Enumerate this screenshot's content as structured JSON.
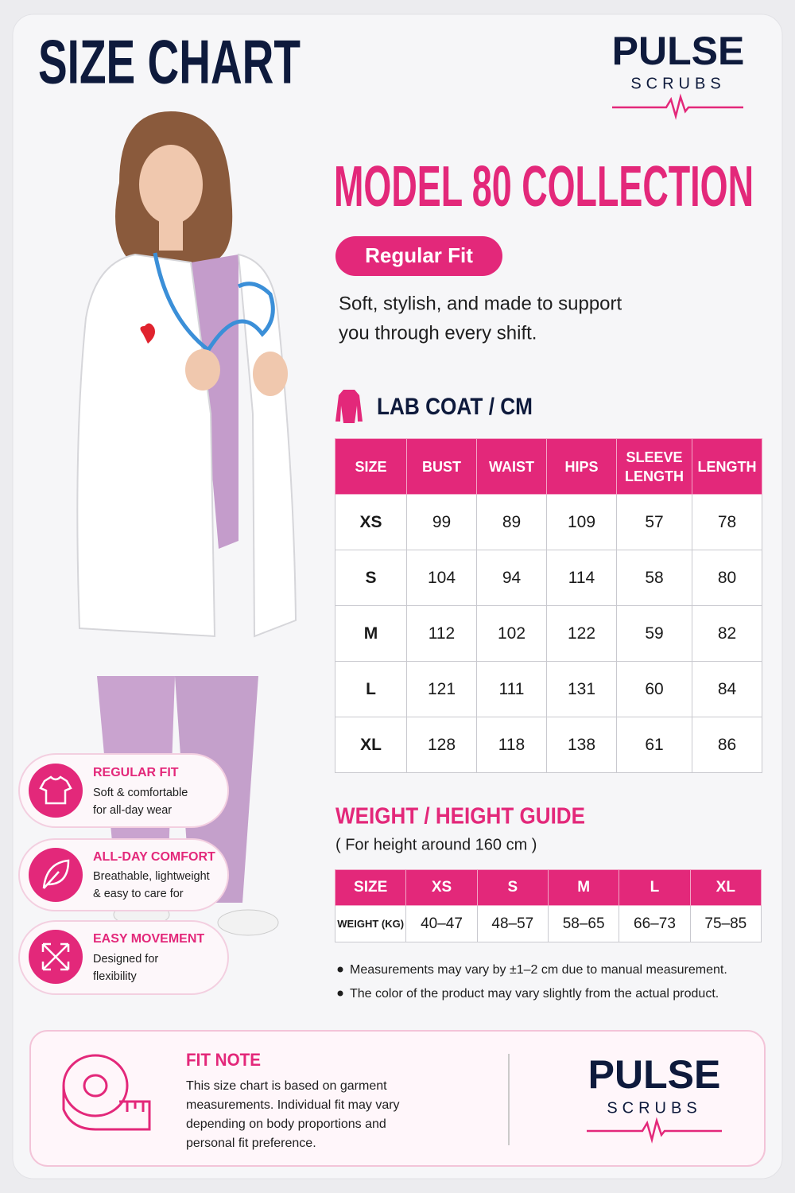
{
  "header": {
    "title": "SIZE CHART",
    "brand": "PULSE",
    "brand_sub": "SCRUBS"
  },
  "collection": {
    "title": "MODEL 80 COLLECTION",
    "fit_badge": "Regular Fit",
    "tagline_lines": [
      "Soft, stylish, and made to support",
      "you through every shift."
    ]
  },
  "lab_coat": {
    "heading": "LAB COAT / CM",
    "columns": [
      "SIZE",
      "BUST",
      "WAIST",
      "HIPS",
      "SLEEVE LENGTH",
      "LENGTH"
    ],
    "rows": [
      [
        "XS",
        99,
        89,
        109,
        57,
        78
      ],
      [
        "S",
        104,
        94,
        114,
        58,
        80
      ],
      [
        "M",
        112,
        102,
        122,
        59,
        82
      ],
      [
        "L",
        121,
        111,
        131,
        60,
        84
      ],
      [
        "XL",
        128,
        118,
        138,
        61,
        86
      ]
    ]
  },
  "weight_guide": {
    "title": "WEIGHT / HEIGHT GUIDE",
    "subtitle": "( For height around 160 cm )",
    "header": [
      "SIZE",
      "XS",
      "S",
      "M",
      "L",
      "XL"
    ],
    "row": [
      "WEIGHT (KG)",
      "40–47",
      "48–57",
      "58–65",
      "66–73",
      "75–85"
    ]
  },
  "notes": [
    "Measurements may vary by ±1–2 cm due to manual measurement.",
    "The color of the product may vary slightly from the actual product."
  ],
  "features": [
    {
      "title": "REGULAR FIT",
      "lines": [
        "Soft & comfortable",
        "for all-day wear"
      ]
    },
    {
      "title": "ALL-DAY COMFORT",
      "lines": [
        "Breathable, lightweight",
        "& easy to care for"
      ]
    },
    {
      "title": "EASY MOVEMENT",
      "lines": [
        "Designed for",
        "flexibility"
      ]
    }
  ],
  "fit_note": {
    "title": "FIT NOTE",
    "lines": [
      "This size chart is based on garment",
      "measurements. Individual fit may vary",
      "depending on body proportions and",
      "personal fit preference."
    ]
  },
  "footer": {
    "brand": "PULSE",
    "brand_sub": "SCRUBS"
  }
}
